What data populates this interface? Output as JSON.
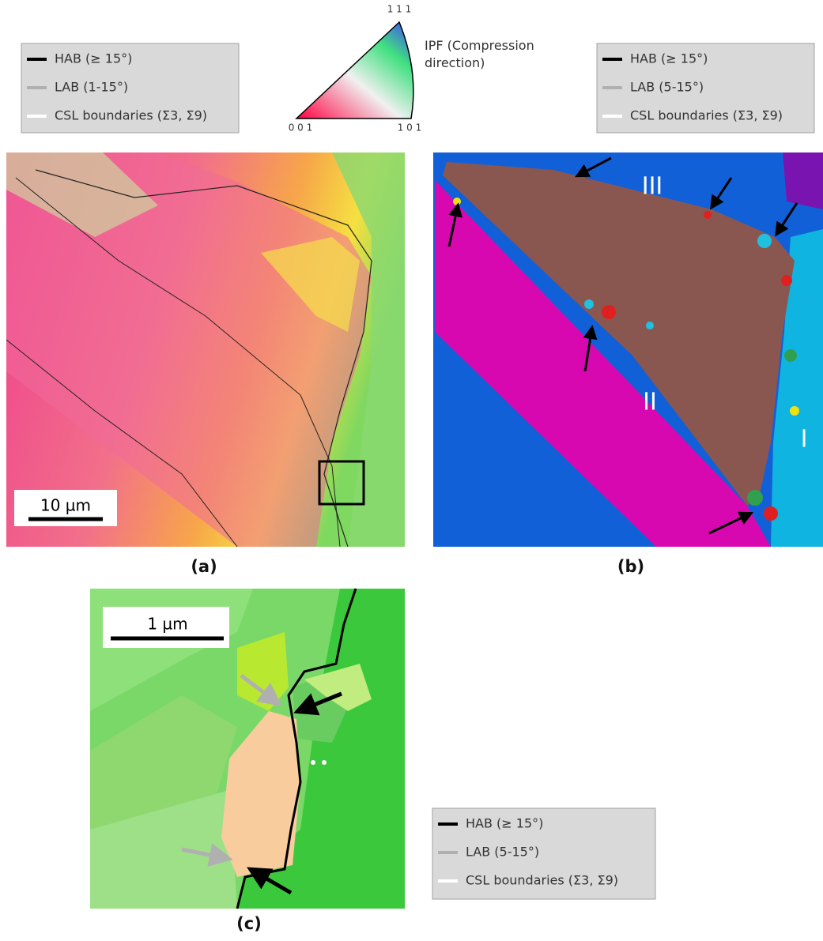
{
  "legends": [
    {
      "items": [
        "HAB (≥ 15°)",
        "LAB (1-15°)",
        "CSL boundaries (Σ3, Σ9)"
      ]
    },
    {
      "items": [
        "HAB (≥ 15°)",
        "LAB (5-15°)",
        "CSL boundaries (Σ3, Σ9)"
      ]
    },
    {
      "items": [
        "HAB (≥ 15°)",
        "LAB (5-15°)",
        "CSL boundaries (Σ3, Σ9)"
      ]
    }
  ],
  "ipf": {
    "title": "IPF (Compression direction)",
    "corner_top": "1 1 1",
    "corner_left": "0 0 1",
    "corner_right": "1 0 1"
  },
  "panels": [
    {
      "label": "(a)",
      "scale_bar": "10 µm"
    },
    {
      "label": "(b)",
      "regions": [
        "III",
        "II",
        "I"
      ]
    },
    {
      "label": "(c)",
      "scale_bar": "1 µm"
    }
  ]
}
